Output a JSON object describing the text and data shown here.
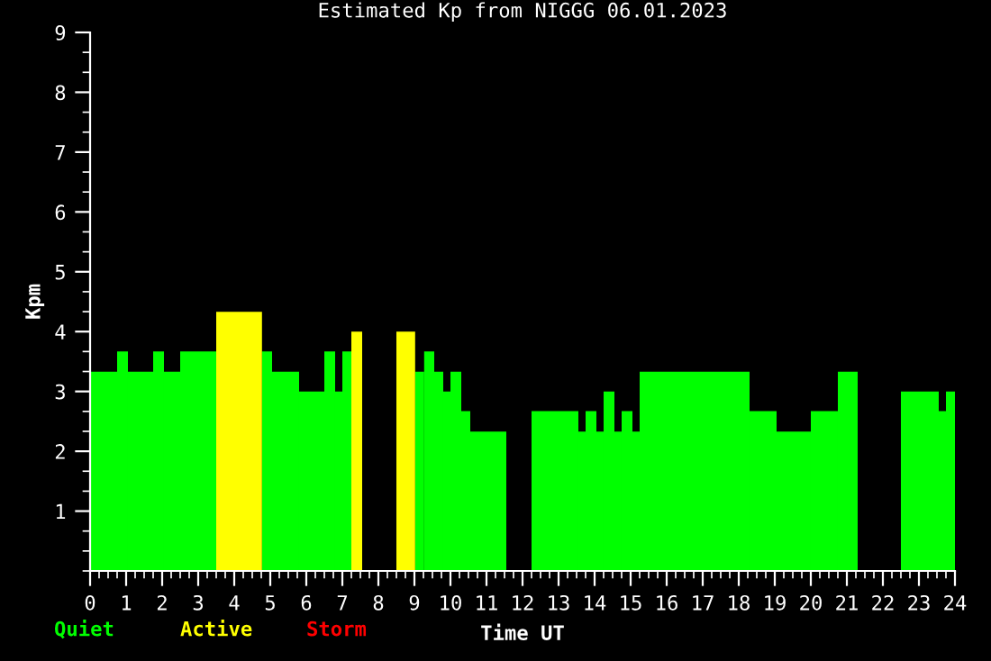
{
  "chart_data": {
    "type": "histogram",
    "title": "Estimated Kp from NIGGG 06.01.2023",
    "xlabel": "Time UT",
    "ylabel": "Kpm",
    "bins": [
      0,
      0.75,
      1.05,
      1.75,
      2.05,
      2.5,
      3.5,
      4.77,
      5.05,
      5.8,
      6.5,
      6.8,
      7.0,
      7.25,
      7.55,
      8.5,
      9.02,
      9.27,
      9.55,
      9.8,
      10.0,
      10.3,
      10.55,
      11.55,
      12.25,
      13.55,
      13.75,
      14.05,
      14.25,
      14.55,
      14.75,
      15.05,
      15.25,
      18.3,
      19.05,
      20.0,
      20.75,
      21.3,
      22.5,
      23.55,
      23.75,
      24.0
    ],
    "series": [
      {
        "name": "Quiet",
        "color": "#00ff00",
        "values": [
          3.33,
          3.67,
          3.33,
          3.67,
          3.33,
          3.67,
          null,
          3.67,
          3.33,
          3.0,
          3.67,
          3.0,
          3.67,
          null,
          null,
          null,
          3.33,
          3.67,
          3.33,
          3.0,
          3.33,
          2.67,
          2.33,
          null,
          2.67,
          2.33,
          2.67,
          2.33,
          3.0,
          2.33,
          2.67,
          2.33,
          3.33,
          2.67,
          2.33,
          2.67,
          3.33,
          null,
          3.0,
          2.67,
          3.0
        ]
      },
      {
        "name": "Active",
        "color": "#ffff00",
        "values": [
          null,
          null,
          null,
          null,
          null,
          null,
          4.33,
          null,
          null,
          null,
          null,
          null,
          null,
          4.0,
          null,
          4.0,
          null,
          null,
          null,
          null,
          null,
          null,
          null,
          null,
          null,
          null,
          null,
          null,
          null,
          null,
          null,
          null,
          null,
          null,
          null,
          null,
          null,
          null,
          null,
          null,
          null
        ]
      }
    ],
    "annotations": [
      "Storm"
    ],
    "xlim": [
      0,
      24
    ],
    "xticks": [
      0,
      1,
      2,
      3,
      4,
      5,
      6,
      7,
      8,
      9,
      10,
      11,
      12,
      13,
      14,
      15,
      16,
      17,
      18,
      19,
      20,
      21,
      22,
      23,
      24
    ],
    "ylim": [
      0,
      9
    ],
    "yticks": [
      1,
      2,
      3,
      4,
      5,
      6,
      7,
      8,
      9
    ],
    "legend": "bottom left",
    "grid": false
  }
}
